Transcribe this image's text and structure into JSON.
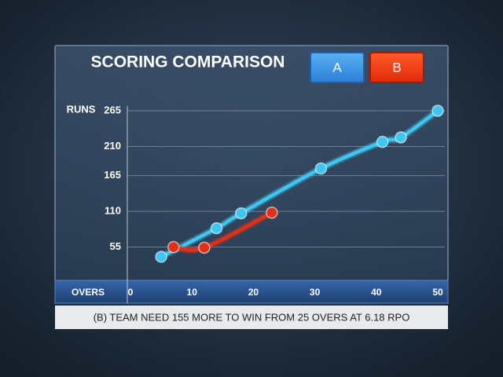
{
  "chart_data": {
    "type": "line",
    "title": "SCORING COMPARISON",
    "y_label": "RUNS",
    "x_label": "OVERS",
    "footer": "(B) TEAM NEED 155 MORE TO WIN FROM 25 OVERS AT 6.18 RPO",
    "xlim": [
      0,
      50
    ],
    "xticks": [
      0,
      10,
      20,
      30,
      40,
      50
    ],
    "ylim": [
      0,
      265
    ],
    "yticks": [
      55,
      110,
      165,
      210,
      265
    ],
    "grid": true,
    "series": [
      {
        "name": "A",
        "color": "#3fc6f0",
        "x": [
          5,
          14,
          18,
          31,
          41,
          44,
          50
        ],
        "values": [
          40,
          84,
          107,
          176,
          217,
          224,
          265
        ]
      },
      {
        "name": "B",
        "color": "#e0301a",
        "x": [
          7,
          12,
          23
        ],
        "values": [
          55,
          54,
          108
        ]
      }
    ]
  }
}
